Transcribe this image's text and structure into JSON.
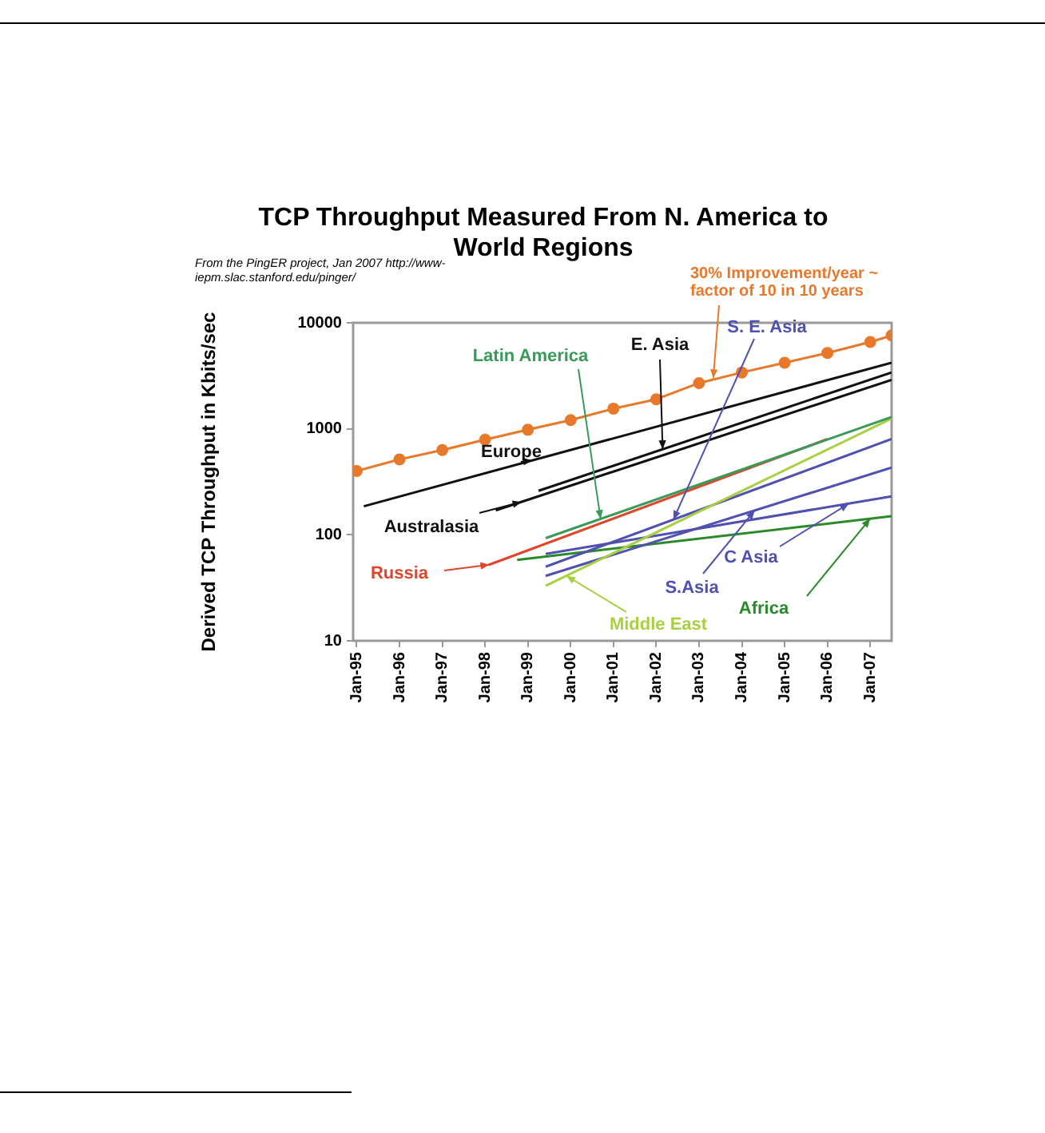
{
  "chart_data": {
    "type": "line",
    "title": "TCP Throughput Measured From N. America to World Regions",
    "ylabel": "Derived TCP Throughput in Kbits/sec",
    "annotations": [
      "From the PingER project, Jan 2007 http://www-iepm.slac.stanford.edu/pinger/",
      {
        "text": "30% Improvement/year ~ factor of 10 in 10 years",
        "x": "2003-05",
        "y": 3000
      }
    ],
    "log": "y",
    "grid": false,
    "legend": false,
    "xlim": [
      "1994-12",
      "2007-07"
    ],
    "xticks": [
      {
        "value": "1995-01",
        "label": "Jan-95"
      },
      {
        "value": "1996-01",
        "label": "Jan-96"
      },
      {
        "value": "1997-01",
        "label": "Jan-97"
      },
      {
        "value": "1998-01",
        "label": "Jan-98"
      },
      {
        "value": "1999-01",
        "label": "Jan-99"
      },
      {
        "value": "2000-01",
        "label": "Jan-00"
      },
      {
        "value": "2001-01",
        "label": "Jan-01"
      },
      {
        "value": "2002-01",
        "label": "Jan-02"
      },
      {
        "value": "2003-01",
        "label": "Jan-03"
      },
      {
        "value": "2004-01",
        "label": "Jan-04"
      },
      {
        "value": "2005-01",
        "label": "Jan-05"
      },
      {
        "value": "2006-01",
        "label": "Jan-06"
      },
      {
        "value": "2007-01",
        "label": "Jan-07"
      }
    ],
    "ylim": [
      10,
      10000
    ],
    "yticks": [
      10,
      100,
      1000,
      10000
    ],
    "series": [
      {
        "color": "#e8782a",
        "marker": "circle",
        "x": [
          "1995-01",
          "1996-01",
          "1997-01",
          "1998-01",
          "1999-01",
          "2000-01",
          "2001-01",
          "2002-01",
          "2003-01",
          "2004-01",
          "2005-01",
          "2006-01",
          "2007-01",
          "2007-07"
        ],
        "values": [
          400,
          515,
          630,
          790,
          980,
          1210,
          1550,
          1900,
          2700,
          3400,
          4200,
          5200,
          6600,
          7600
        ]
      },
      {
        "name": "Europe",
        "color": "#111111",
        "marker": "none",
        "x": [
          "1995-03",
          "2007-07"
        ],
        "values": [
          186,
          4200
        ]
      },
      {
        "name": "Australasia",
        "color": "#111111",
        "marker": "none",
        "x": [
          "1998-04",
          "2007-07"
        ],
        "values": [
          170,
          2900
        ]
      },
      {
        "name": "E. Asia",
        "color": "#111111",
        "marker": "none",
        "x": [
          "1999-04",
          "2007-07"
        ],
        "values": [
          260,
          3400
        ]
      },
      {
        "name": "Latin America",
        "color": "#3a9a5a",
        "marker": "none",
        "x": [
          "1999-06",
          "2007-07"
        ],
        "values": [
          93,
          1290
        ]
      },
      {
        "name": "Russia",
        "color": "#e0452a",
        "marker": "none",
        "x": [
          "1998-02",
          "2006-01"
        ],
        "values": [
          52,
          800
        ]
      },
      {
        "name": "Middle East",
        "color": "#a8d040",
        "marker": "none",
        "x": [
          "1999-06",
          "2007-07"
        ],
        "values": [
          33,
          1250
        ]
      },
      {
        "name": "S. E. Asia",
        "color": "#5050b0",
        "marker": "none",
        "x": [
          "1999-06",
          "2007-07"
        ],
        "values": [
          50,
          800
        ]
      },
      {
        "name": "S.Asia",
        "color": "#5050b0",
        "marker": "none",
        "x": [
          "1999-06",
          "2007-07"
        ],
        "values": [
          41,
          430
        ]
      },
      {
        "name": "C Asia",
        "color": "#5050b0",
        "marker": "none",
        "x": [
          "1999-06",
          "2007-07"
        ],
        "values": [
          66,
          230
        ]
      },
      {
        "name": "Africa",
        "color": "#2a8a2a",
        "marker": "none",
        "x": [
          "1998-10",
          "2007-07"
        ],
        "values": [
          58,
          150
        ]
      }
    ]
  }
}
